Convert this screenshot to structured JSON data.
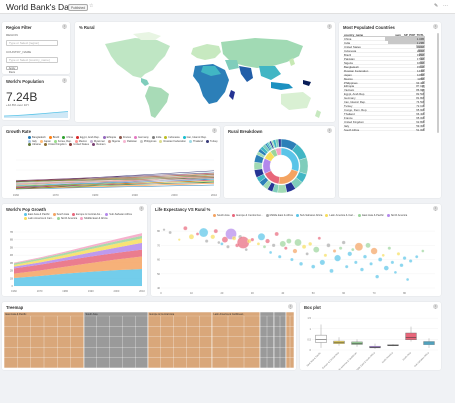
{
  "header": {
    "title": "World Bank's Data",
    "badge": "Published",
    "star_icon": "star-icon",
    "edit_icon": "edit-icon",
    "more_icon": "more-icon"
  },
  "filter": {
    "title": "Region Filter",
    "region_label": "REGION",
    "region_placeholder": "Type or Select [region]",
    "country_label": "COUNTRY_NAME",
    "country_placeholder": "Type or Select [country_name]",
    "apply_label": "Apply filters"
  },
  "population": {
    "title": "World's Population",
    "value": "7.24B",
    "delta": "+12.8% over 10Y"
  },
  "rural_map": {
    "title": "% Rural"
  },
  "most_populated": {
    "title": "Most Populated Countries",
    "col_name": "country_name",
    "col_value": "sum__SP_POP_TOTL",
    "rows": [
      {
        "name": "China",
        "value": "1.34B",
        "frac": 1.0
      },
      {
        "name": "India",
        "value": "1.23B",
        "frac": 0.92
      },
      {
        "name": "United States",
        "value": "310M",
        "frac": 0.23
      },
      {
        "name": "Indonesia",
        "value": "240M",
        "frac": 0.18
      },
      {
        "name": "Brazil",
        "value": "195M",
        "frac": 0.145
      },
      {
        "name": "Pakistan",
        "value": "174M",
        "frac": 0.13
      },
      {
        "name": "Nigeria",
        "value": "160M",
        "frac": 0.12
      },
      {
        "name": "Bangladesh",
        "value": "151M",
        "frac": 0.113
      },
      {
        "name": "Russian Federation",
        "value": "143M",
        "frac": 0.107
      },
      {
        "name": "Japan",
        "value": "128M",
        "frac": 0.096
      },
      {
        "name": "Mexico",
        "value": "118M",
        "frac": 0.088
      },
      {
        "name": "Philippines",
        "value": "93.4M",
        "frac": 0.07
      },
      {
        "name": "Ethiopia",
        "value": "87.1M",
        "frac": 0.065
      },
      {
        "name": "Vietnam",
        "value": "86.9M",
        "frac": 0.065
      },
      {
        "name": "Egypt, Arab Rep.",
        "value": "82.5M",
        "frac": 0.062
      },
      {
        "name": "Germany",
        "value": "81.8M",
        "frac": 0.061
      },
      {
        "name": "Iran, Islamic Rep.",
        "value": "74.5M",
        "frac": 0.056
      },
      {
        "name": "Turkey",
        "value": "72.1M",
        "frac": 0.054
      },
      {
        "name": "Congo, Dem. Rep.",
        "value": "65.9M",
        "frac": 0.049
      },
      {
        "name": "Thailand",
        "value": "66.4M",
        "frac": 0.05
      },
      {
        "name": "France",
        "value": "65.0M",
        "frac": 0.049
      },
      {
        "name": "United Kingdom",
        "value": "62.8M",
        "frac": 0.047
      },
      {
        "name": "Italy",
        "value": "59.3M",
        "frac": 0.044
      },
      {
        "name": "South Africa",
        "value": "51.0M",
        "frac": 0.038
      }
    ]
  },
  "growth": {
    "title": "Growth Rate",
    "legend": [
      {
        "name": "Bangladesh",
        "color": "#1f77b4"
      },
      {
        "name": "Brazil",
        "color": "#ff7f0e"
      },
      {
        "name": "China",
        "color": "#2ca02c"
      },
      {
        "name": "Egypt, Arab Rep.",
        "color": "#d62728"
      },
      {
        "name": "Ethiopia",
        "color": "#9467bd"
      },
      {
        "name": "France",
        "color": "#8c564b"
      },
      {
        "name": "Germany",
        "color": "#e377c2"
      },
      {
        "name": "India",
        "color": "#7f7f7f"
      },
      {
        "name": "Indonesia",
        "color": "#bcbd22"
      },
      {
        "name": "Iran, Islamic Rep.",
        "color": "#17becf"
      },
      {
        "name": "Italy",
        "color": "#aec7e8"
      },
      {
        "name": "Japan",
        "color": "#ffbb78"
      },
      {
        "name": "Korea, Rep.",
        "color": "#98df8a"
      },
      {
        "name": "Mexico",
        "color": "#ff9896"
      },
      {
        "name": "Myanmar",
        "color": "#c5b0d5"
      },
      {
        "name": "Nigeria",
        "color": "#c49c94"
      },
      {
        "name": "Pakistan",
        "color": "#f7b6d2"
      },
      {
        "name": "Philippines",
        "color": "#c7c7c7"
      },
      {
        "name": "Russian Federation",
        "color": "#dbdb8d"
      },
      {
        "name": "Thailand",
        "color": "#9edae5"
      },
      {
        "name": "Turkey",
        "color": "#393b79"
      },
      {
        "name": "Ukraine",
        "color": "#637939"
      },
      {
        "name": "United Kingdom",
        "color": "#8c6d31"
      },
      {
        "name": "United States",
        "color": "#843c39"
      },
      {
        "name": "Vietnam",
        "color": "#7b4173"
      }
    ]
  },
  "rural_breakdown": {
    "title": "Rural Breakdown"
  },
  "pop_growth": {
    "title": "World's Pop Growth",
    "legend": [
      {
        "name": "East Asia & Pacific",
        "color": "#5ac4e8"
      },
      {
        "name": "South Asia",
        "color": "#f4a361"
      },
      {
        "name": "Europe & Central Asi...",
        "color": "#e8667a"
      },
      {
        "name": "Sub-Saharan Africa",
        "color": "#b388eb"
      },
      {
        "name": "Latin America & Cari...",
        "color": "#f7de5c"
      },
      {
        "name": "North America",
        "color": "#9bd49b"
      },
      {
        "name": "Middle East & Africa",
        "color": "#f5a3c4"
      }
    ]
  },
  "life_exp": {
    "title": "Life Expectancy VS Rural %",
    "legend": [
      {
        "name": "South Asia",
        "color": "#f4a361"
      },
      {
        "name": "Europe & Central Asi...",
        "color": "#e8667a"
      },
      {
        "name": "Middle East & Africa",
        "color": "#a9a9a9"
      },
      {
        "name": "Sub-Saharan Africa",
        "color": "#5ac4e8"
      },
      {
        "name": "Latin America & Cari...",
        "color": "#f7de5c"
      },
      {
        "name": "East Asia & Pacific",
        "color": "#9bd49b"
      },
      {
        "name": "North America",
        "color": "#b388eb"
      }
    ]
  },
  "treemap": {
    "title": "Treemap",
    "regions": [
      "East Asia & Pacific",
      "South Asia",
      "Europe & Central Asia",
      "Latin America & Caribbean",
      "Middle East & Africa",
      "Sub-Saharan Africa",
      "North America"
    ]
  },
  "boxplot": {
    "title": "Box plot"
  },
  "chart_data": [
    {
      "type": "line",
      "title": "Growth Rate",
      "x": [
        1960,
        1970,
        1980,
        1990,
        2000,
        2010
      ],
      "xticks": [
        "1960",
        "1970",
        "1980",
        "1990",
        "2000",
        "2010"
      ]
    },
    {
      "type": "area",
      "title": "World's Pop Growth",
      "x": [
        1960,
        1970,
        1980,
        1990,
        2000,
        2010
      ],
      "xticks": [
        "1960",
        "1970",
        "1980",
        "1990",
        "2000",
        "2010"
      ],
      "yticks": [
        "0",
        "1B",
        "2B",
        "3B",
        "4B",
        "5B",
        "6B",
        "7B"
      ],
      "series": [
        {
          "name": "East Asia & Pacific",
          "values": [
            1.04,
            1.3,
            1.6,
            1.85,
            2.05,
            2.2
          ]
        },
        {
          "name": "South Asia",
          "values": [
            0.57,
            0.71,
            0.9,
            1.13,
            1.39,
            1.63
          ]
        },
        {
          "name": "Europe & Central Asia",
          "values": [
            0.67,
            0.74,
            0.8,
            0.85,
            0.86,
            0.89
          ]
        },
        {
          "name": "Sub-Saharan Africa",
          "values": [
            0.23,
            0.29,
            0.38,
            0.51,
            0.67,
            0.87
          ]
        },
        {
          "name": "Latin America & Caribbean",
          "values": [
            0.22,
            0.29,
            0.36,
            0.44,
            0.52,
            0.59
          ]
        },
        {
          "name": "North America",
          "values": [
            0.2,
            0.23,
            0.25,
            0.28,
            0.31,
            0.34
          ]
        },
        {
          "name": "Middle East & Africa",
          "values": [
            0.1,
            0.13,
            0.17,
            0.23,
            0.28,
            0.34
          ]
        }
      ]
    },
    {
      "type": "scatter",
      "title": "Life Expectancy VS Rural %",
      "xticks": [
        "0",
        "10",
        "20",
        "30",
        "40",
        "50",
        "60",
        "70",
        "80"
      ],
      "yticks": [
        "40",
        "50",
        "60",
        "70",
        "80"
      ],
      "xlim": [
        0,
        90
      ],
      "ylim": [
        40,
        85
      ],
      "points": [
        {
          "x": 1,
          "y": 81,
          "r": 1.2,
          "c": 2
        },
        {
          "x": 3,
          "y": 79,
          "r": 1.5,
          "c": 2
        },
        {
          "x": 6,
          "y": 74,
          "r": 1.2,
          "c": 4
        },
        {
          "x": 8,
          "y": 82,
          "r": 2,
          "c": 1
        },
        {
          "x": 10,
          "y": 76,
          "r": 2.5,
          "c": 4
        },
        {
          "x": 12,
          "y": 78,
          "r": 1.5,
          "c": 1
        },
        {
          "x": 14,
          "y": 79,
          "r": 4.5,
          "c": 3
        },
        {
          "x": 15,
          "y": 73,
          "r": 1.6,
          "c": 2
        },
        {
          "x": 17,
          "y": 76,
          "r": 2.2,
          "c": 4
        },
        {
          "x": 18,
          "y": 80,
          "r": 2,
          "c": 1
        },
        {
          "x": 19,
          "y": 72,
          "r": 1.4,
          "c": 2
        },
        {
          "x": 20,
          "y": 71,
          "r": 1.5,
          "c": 3
        },
        {
          "x": 21,
          "y": 74,
          "r": 3,
          "c": 1
        },
        {
          "x": 22,
          "y": 69,
          "r": 1.6,
          "c": 2
        },
        {
          "x": 23,
          "y": 78,
          "r": 5.5,
          "c": 6
        },
        {
          "x": 24,
          "y": 75,
          "r": 2,
          "c": 4
        },
        {
          "x": 25,
          "y": 70,
          "r": 1.8,
          "c": 1
        },
        {
          "x": 26,
          "y": 76,
          "r": 1.8,
          "c": 2
        },
        {
          "x": 27,
          "y": 72,
          "r": 6,
          "c": 1
        },
        {
          "x": 28,
          "y": 67,
          "r": 1.4,
          "c": 2
        },
        {
          "x": 29,
          "y": 73,
          "r": 2,
          "c": 4
        },
        {
          "x": 30,
          "y": 74,
          "r": 1.7,
          "c": 1
        },
        {
          "x": 32,
          "y": 71,
          "r": 1.5,
          "c": 4
        },
        {
          "x": 33,
          "y": 76,
          "r": 3.6,
          "c": 3
        },
        {
          "x": 34,
          "y": 69,
          "r": 1.5,
          "c": 5
        },
        {
          "x": 35,
          "y": 73,
          "r": 2.2,
          "c": 1
        },
        {
          "x": 36,
          "y": 65,
          "r": 1.4,
          "c": 3
        },
        {
          "x": 37,
          "y": 70,
          "r": 1.7,
          "c": 2
        },
        {
          "x": 38,
          "y": 78,
          "r": 2,
          "c": 1
        },
        {
          "x": 39,
          "y": 62,
          "r": 1.6,
          "c": 3
        },
        {
          "x": 40,
          "y": 71,
          "r": 3,
          "c": 5
        },
        {
          "x": 41,
          "y": 68,
          "r": 1.6,
          "c": 1
        },
        {
          "x": 42,
          "y": 73,
          "r": 2.5,
          "c": 5
        },
        {
          "x": 43,
          "y": 60,
          "r": 1.6,
          "c": 3
        },
        {
          "x": 44,
          "y": 66,
          "r": 2.2,
          "c": 0
        },
        {
          "x": 45,
          "y": 72,
          "r": 3.5,
          "c": 5
        },
        {
          "x": 46,
          "y": 57,
          "r": 1.8,
          "c": 3
        },
        {
          "x": 47,
          "y": 69,
          "r": 2,
          "c": 4
        },
        {
          "x": 48,
          "y": 64,
          "r": 1.5,
          "c": 2
        },
        {
          "x": 49,
          "y": 71,
          "r": 1.8,
          "c": 4
        },
        {
          "x": 50,
          "y": 55,
          "r": 1.9,
          "c": 3
        },
        {
          "x": 51,
          "y": 67,
          "r": 3,
          "c": 5
        },
        {
          "x": 52,
          "y": 75,
          "r": 1.5,
          "c": 1
        },
        {
          "x": 53,
          "y": 58,
          "r": 2.6,
          "c": 3
        },
        {
          "x": 54,
          "y": 63,
          "r": 1.6,
          "c": 4
        },
        {
          "x": 55,
          "y": 70,
          "r": 1.9,
          "c": 2
        },
        {
          "x": 56,
          "y": 52,
          "r": 2,
          "c": 3
        },
        {
          "x": 57,
          "y": 66,
          "r": 1.6,
          "c": 0
        },
        {
          "x": 58,
          "y": 61,
          "r": 3.2,
          "c": 3
        },
        {
          "x": 59,
          "y": 68,
          "r": 1.6,
          "c": 5
        },
        {
          "x": 60,
          "y": 72,
          "r": 1.8,
          "c": 2
        },
        {
          "x": 61,
          "y": 55,
          "r": 1.6,
          "c": 3
        },
        {
          "x": 62,
          "y": 64,
          "r": 2.2,
          "c": 3
        },
        {
          "x": 63,
          "y": 67,
          "r": 1.5,
          "c": 5
        },
        {
          "x": 64,
          "y": 58,
          "r": 1.6,
          "c": 3
        },
        {
          "x": 65,
          "y": 69,
          "r": 4,
          "c": 0
        },
        {
          "x": 66,
          "y": 53,
          "r": 1.8,
          "c": 3
        },
        {
          "x": 67,
          "y": 62,
          "r": 1.8,
          "c": 3
        },
        {
          "x": 68,
          "y": 70,
          "r": 2.5,
          "c": 5
        },
        {
          "x": 69,
          "y": 57,
          "r": 1.6,
          "c": 3
        },
        {
          "x": 70,
          "y": 66,
          "r": 3.3,
          "c": 0
        },
        {
          "x": 71,
          "y": 48,
          "r": 1.8,
          "c": 3
        },
        {
          "x": 72,
          "y": 60,
          "r": 2,
          "c": 3
        },
        {
          "x": 73,
          "y": 63,
          "r": 1.4,
          "c": 4
        },
        {
          "x": 74,
          "y": 54,
          "r": 2.4,
          "c": 3
        },
        {
          "x": 75,
          "y": 68,
          "r": 1.6,
          "c": 5
        },
        {
          "x": 76,
          "y": 58,
          "r": 1.6,
          "c": 3
        },
        {
          "x": 77,
          "y": 51,
          "r": 1.4,
          "c": 3
        },
        {
          "x": 78,
          "y": 64,
          "r": 1.6,
          "c": 4
        },
        {
          "x": 79,
          "y": 56,
          "r": 1.8,
          "c": 3
        },
        {
          "x": 80,
          "y": 61,
          "r": 1.7,
          "c": 3
        },
        {
          "x": 81,
          "y": 46,
          "r": 1.4,
          "c": 3
        },
        {
          "x": 82,
          "y": 59,
          "r": 1.6,
          "c": 3
        },
        {
          "x": 84,
          "y": 62,
          "r": 1.5,
          "c": 3
        },
        {
          "x": 86,
          "y": 66,
          "r": 1.4,
          "c": 5
        }
      ]
    },
    {
      "type": "box",
      "title": "Box plot",
      "categories": [
        "East Asia & Pacific",
        "Europe & Central Asia",
        "Latin America & Caribbean",
        "Middle East & North Africa",
        "North America",
        "South Asia",
        "Sub-Saharan Africa"
      ],
      "yticks": [
        "0",
        "0.5",
        "1",
        "1.5"
      ],
      "ylim": [
        0,
        1.6
      ],
      "boxes": [
        {
          "q1": 0.35,
          "med": 0.5,
          "q3": 0.7,
          "min": 0.1,
          "max": 1.2,
          "color": "#ffffff"
        },
        {
          "q1": 0.3,
          "med": 0.36,
          "q3": 0.42,
          "min": 0.2,
          "max": 0.6,
          "color": "#f7de5c"
        },
        {
          "q1": 0.26,
          "med": 0.31,
          "q3": 0.38,
          "min": 0.15,
          "max": 0.5,
          "color": "#9bd49b"
        },
        {
          "q1": 0.1,
          "med": 0.13,
          "q3": 0.18,
          "min": 0.05,
          "max": 0.3,
          "color": "#b388eb"
        },
        {
          "q1": 0.2,
          "med": 0.22,
          "q3": 0.25,
          "min": 0.18,
          "max": 0.28,
          "color": "#a9a9a9"
        },
        {
          "q1": 0.48,
          "med": 0.6,
          "q3": 0.8,
          "min": 0.4,
          "max": 1.1,
          "color": "#e8667a"
        },
        {
          "q1": 0.25,
          "med": 0.33,
          "q3": 0.4,
          "min": 0.1,
          "max": 0.55,
          "color": "#5ac4e8"
        }
      ]
    }
  ]
}
